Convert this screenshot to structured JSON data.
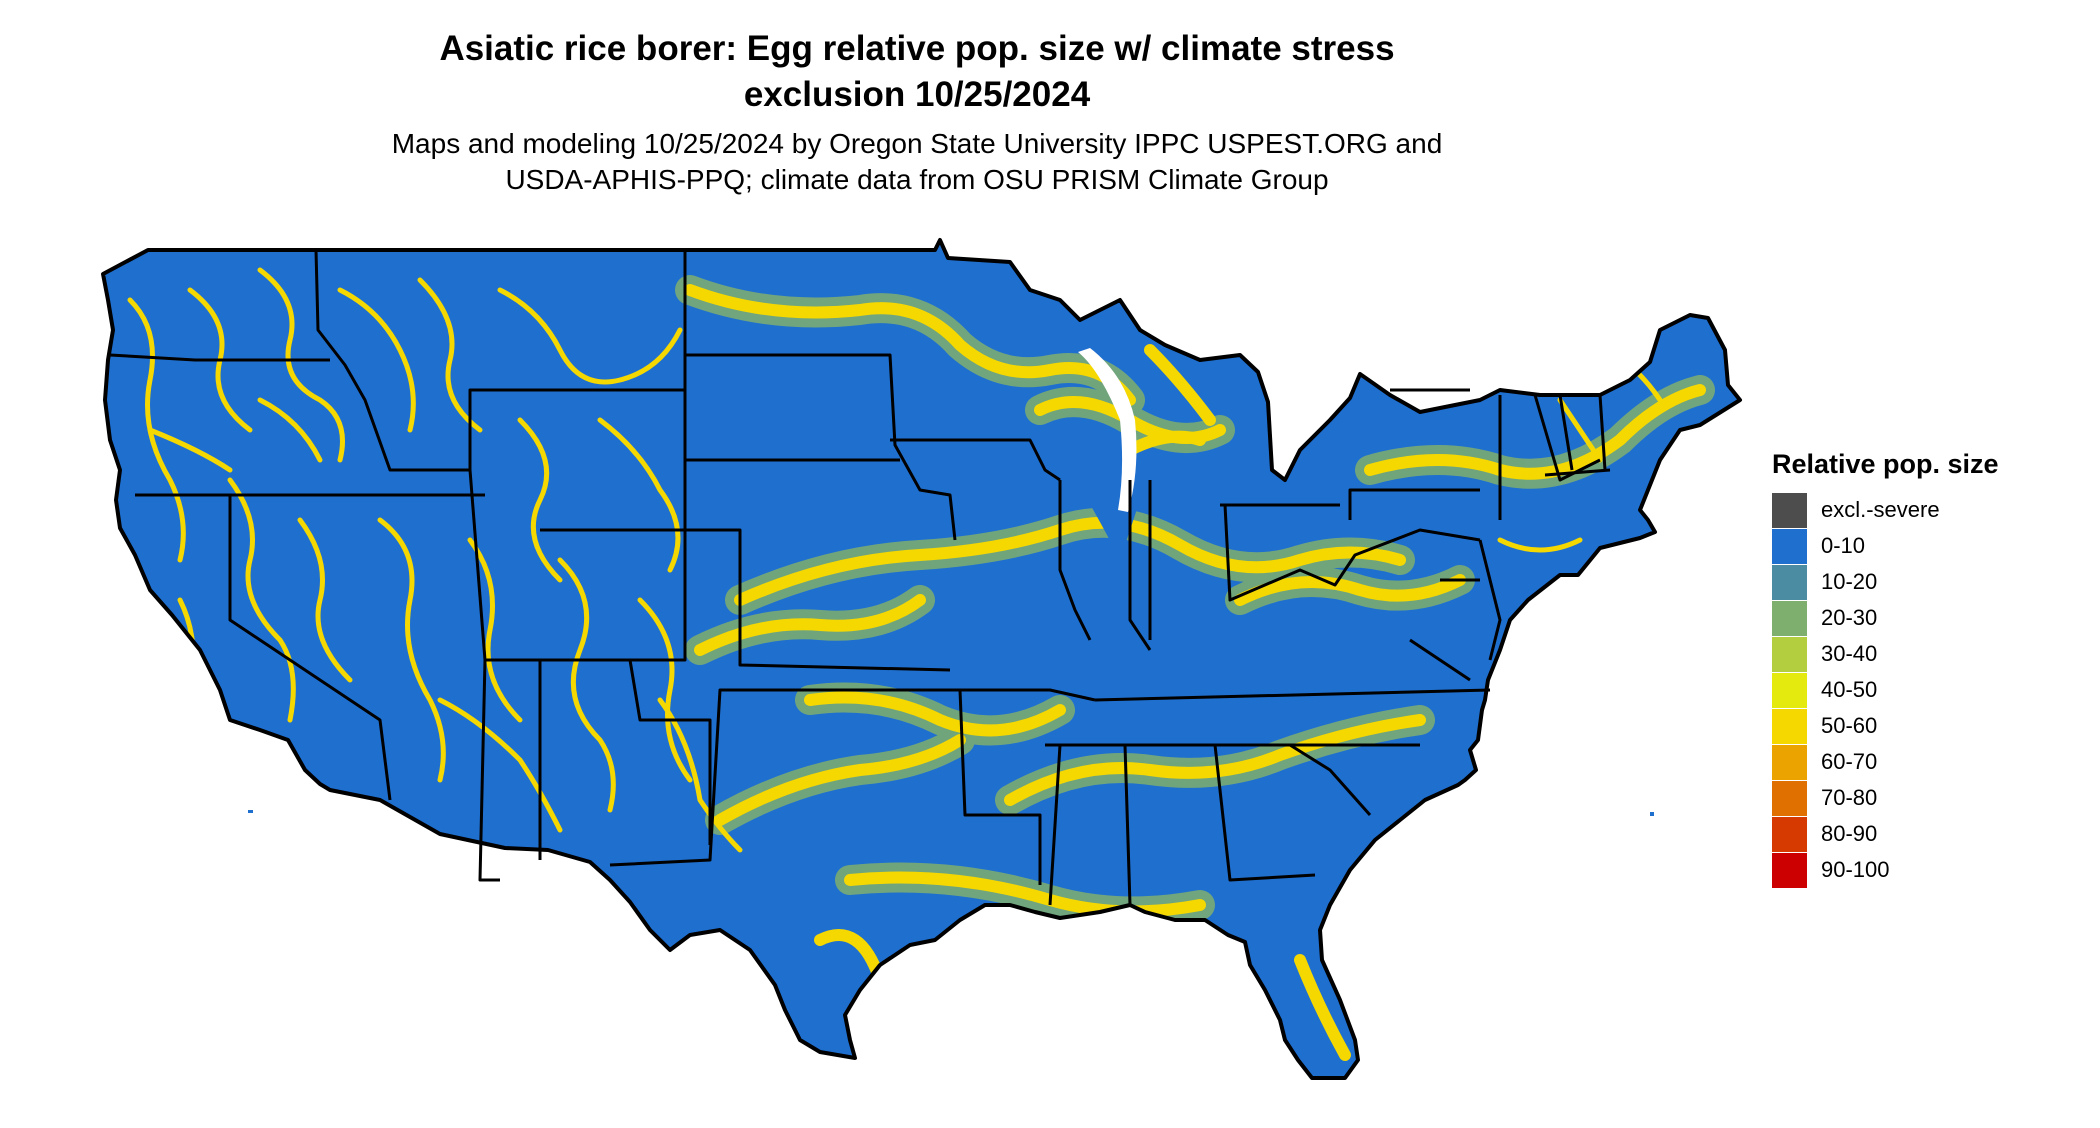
{
  "header": {
    "title_line1": "Asiatic rice borer: Egg relative pop. size w/ climate stress",
    "title_line2": "exclusion 10/25/2024",
    "subtitle_line1": "Maps and modeling 10/25/2024 by Oregon State University IPPC USPEST.ORG and",
    "subtitle_line2": "USDA-APHIS-PPQ; climate data from OSU PRISM Climate Group"
  },
  "map": {
    "region": "Contiguous United States",
    "background_class": "0-10",
    "colors": {
      "ocean": "#ffffff",
      "state_border": "#000000"
    }
  },
  "legend": {
    "title": "Relative pop. size",
    "items": [
      {
        "label": "excl.-severe",
        "color": "#4d4d4d"
      },
      {
        "label": "0-10",
        "color": "#1f6fcf"
      },
      {
        "label": "10-20",
        "color": "#4b8ca3"
      },
      {
        "label": "20-30",
        "color": "#7faf6e"
      },
      {
        "label": "30-40",
        "color": "#b3cf3f"
      },
      {
        "label": "40-50",
        "color": "#e4ea0e"
      },
      {
        "label": "50-60",
        "color": "#f5d800"
      },
      {
        "label": "60-70",
        "color": "#eba300"
      },
      {
        "label": "70-80",
        "color": "#e07000"
      },
      {
        "label": "80-90",
        "color": "#d63a00"
      },
      {
        "label": "90-100",
        "color": "#cc0000"
      }
    ]
  }
}
